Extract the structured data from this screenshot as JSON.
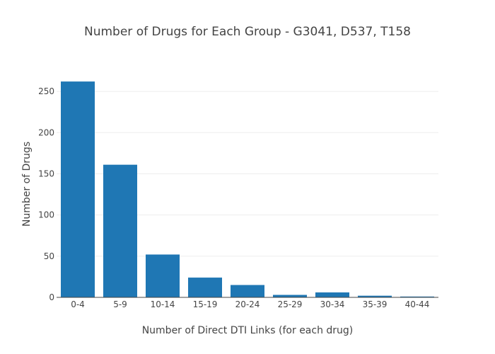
{
  "chart_data": {
    "type": "bar",
    "title": "Number of Drugs for Each Group - G3041, D537, T158",
    "xlabel": "Number of Direct DTI Links (for each drug)",
    "ylabel": "Number of Drugs",
    "categories": [
      "0-4",
      "5-9",
      "10-14",
      "15-19",
      "20-24",
      "25-29",
      "30-34",
      "35-39",
      "40-44"
    ],
    "values": [
      262,
      161,
      52,
      24,
      15,
      3,
      6,
      2,
      1
    ],
    "ylim": [
      0,
      275
    ],
    "yticks": [
      0,
      50,
      100,
      150,
      200,
      250
    ],
    "grid": true,
    "legend": "none"
  },
  "colors": {
    "bar": "#1f77b4",
    "text": "#444444",
    "grid": "#eeeeee"
  }
}
